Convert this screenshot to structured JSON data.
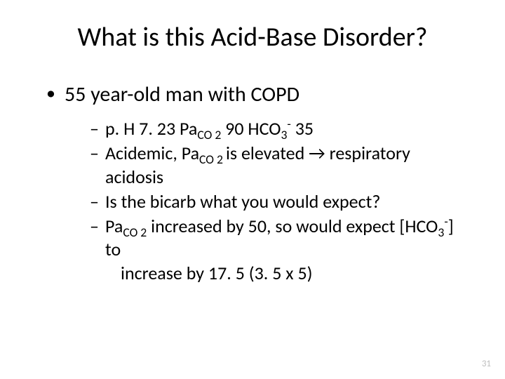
{
  "title": "What is this Acid-Base Disorder?",
  "bullet1": "55 year-old man with COPD",
  "sub1_a": "p. H 7. 23   Pa",
  "sub1_b": "CO 2",
  "sub1_c": " 90  HCO",
  "sub1_d": "3",
  "sub1_e": "-",
  "sub1_f": " 35",
  "sub2_a": "Acidemic, Pa",
  "sub2_b": "CO 2 ",
  "sub2_c": "is elevated ",
  "arrow": "→",
  "sub2_d": " respiratory acidosis",
  "sub3": "Is the bicarb what you would expect?",
  "sub4_a": "Pa",
  "sub4_b": "CO 2",
  "sub4_c": " increased by 50, so would expect [HCO",
  "sub4_d": "3",
  "sub4_e": "-",
  "sub4_f": "] to",
  "sub4_g": "increase by 17. 5 (3. 5 x 5)",
  "page": "31"
}
